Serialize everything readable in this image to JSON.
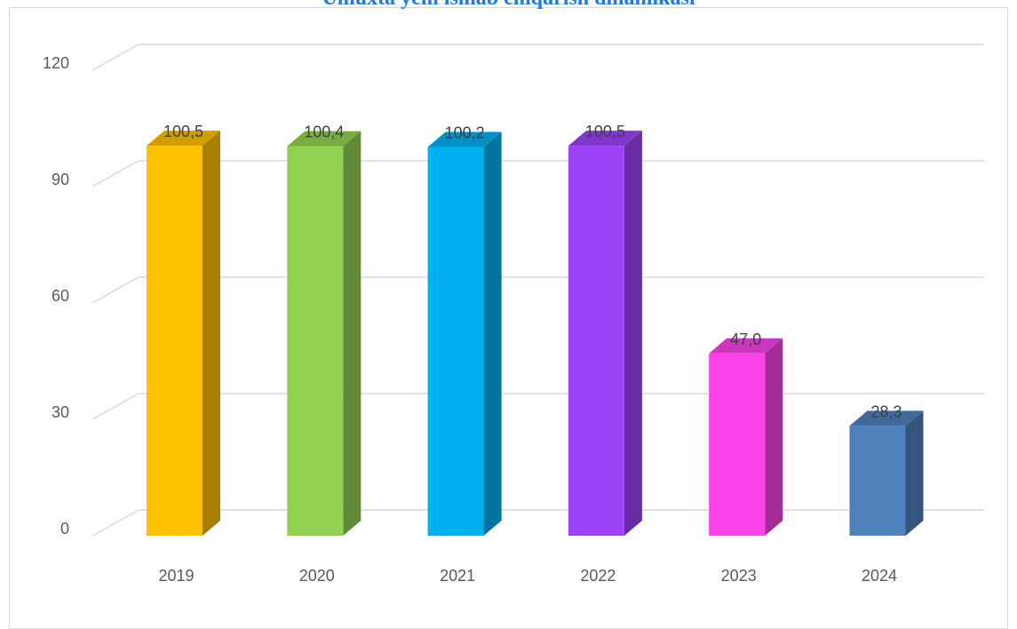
{
  "chart_data": {
    "type": "bar",
    "title": "Ümuxta yeni ismab emqarisn dinamikasi",
    "categories": [
      "2019",
      "2020",
      "2021",
      "2022",
      "2023",
      "2024"
    ],
    "values": [
      100.5,
      100.4,
      100.2,
      100.5,
      47.0,
      28.3
    ],
    "value_labels": [
      "100,5",
      "100,4",
      "100,2",
      "100,5",
      "47,0",
      "28,3"
    ],
    "yticks": [
      "0",
      "30",
      "60",
      "90",
      "120"
    ],
    "ylim": [
      0,
      120
    ],
    "xlabel": "",
    "ylabel": "",
    "grid": true,
    "legend": "none",
    "colors": [
      "#ffc000",
      "#92d050",
      "#00b0f0",
      "#9c43f8",
      "#f943e8",
      "#4f81bd"
    ]
  }
}
